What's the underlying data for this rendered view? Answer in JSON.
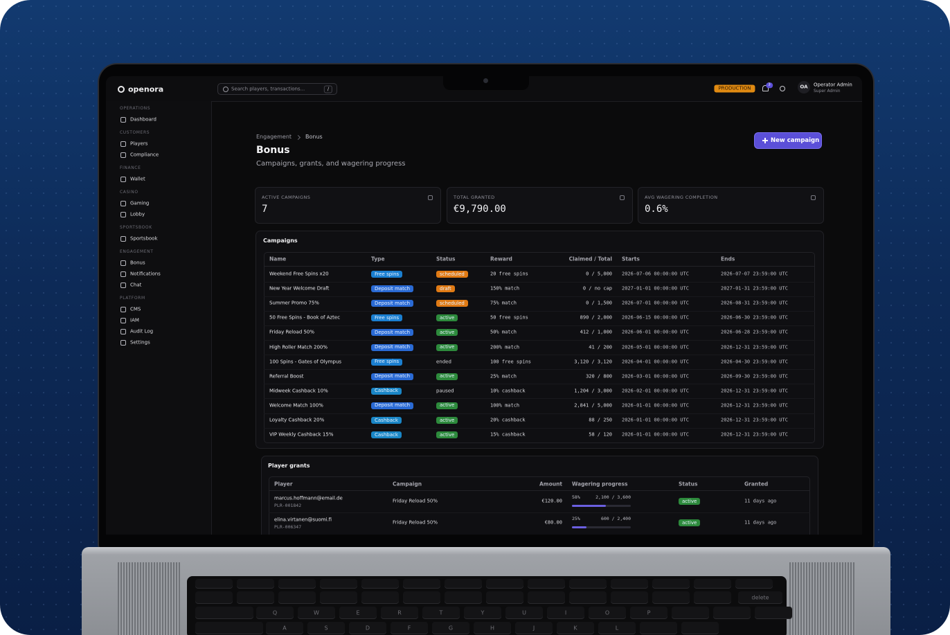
{
  "app": {
    "brand": "openora",
    "search_placeholder": "Search players, transactions...",
    "search_shortcut": "/",
    "environment": "PRODUCTION",
    "notification_count": "3",
    "user": {
      "initials": "OA",
      "name": "Operator Admin",
      "role": "Super Admin"
    }
  },
  "sidebar": [
    {
      "title": "OPERATIONS",
      "items": [
        "Dashboard"
      ]
    },
    {
      "title": "CUSTOMERS",
      "items": [
        "Players",
        "Compliance"
      ]
    },
    {
      "title": "FINANCE",
      "items": [
        "Wallet"
      ]
    },
    {
      "title": "CASINO",
      "items": [
        "Gaming",
        "Lobby"
      ]
    },
    {
      "title": "SPORTSBOOK",
      "items": [
        "Sportsbook"
      ]
    },
    {
      "title": "ENGAGEMENT",
      "items": [
        "Bonus",
        "Notifications",
        "Chat"
      ]
    },
    {
      "title": "PLATFORM",
      "items": [
        "CMS",
        "IAM",
        "Audit Log",
        "Settings"
      ]
    }
  ],
  "page": {
    "breadcrumb": [
      "Engagement",
      "Bonus"
    ],
    "title": "Bonus",
    "subtitle": "Campaigns, grants, and wagering progress",
    "action": "New campaign"
  },
  "stats": [
    {
      "label": "ACTIVE CAMPAIGNS",
      "value": "7"
    },
    {
      "label": "TOTAL GRANTED",
      "value": "€9,790.00"
    },
    {
      "label": "AVG WAGERING COMPLETION",
      "value": "0.6%"
    }
  ],
  "campaigns": {
    "title": "Campaigns",
    "columns": [
      "Name",
      "Type",
      "Status",
      "Reward",
      "Claimed / Total",
      "Starts",
      "Ends"
    ],
    "rows": [
      {
        "name": "Weekend Free Spins x20",
        "type": {
          "label": "Free spins",
          "color": "#1b7fd0"
        },
        "status": {
          "label": "scheduled",
          "color": "#e07a14"
        },
        "reward": "20 free spins",
        "claimed": "0 / 5,000",
        "starts": "2026-07-06 00:00:00 UTC",
        "ends": "2026-07-07 23:59:00 UTC"
      },
      {
        "name": "New Year Welcome Draft",
        "type": {
          "label": "Deposit match",
          "color": "#2a6ad4"
        },
        "status": {
          "label": "draft",
          "color": "#e07a14"
        },
        "reward": "150% match",
        "claimed": "0 / no cap",
        "starts": "2027-01-01 00:00:00 UTC",
        "ends": "2027-01-31 23:59:00 UTC"
      },
      {
        "name": "Summer Promo 75%",
        "type": {
          "label": "Deposit match",
          "color": "#2a6ad4"
        },
        "status": {
          "label": "scheduled",
          "color": "#e07a14"
        },
        "reward": "75% match",
        "claimed": "0 / 1,500",
        "starts": "2026-07-01 00:00:00 UTC",
        "ends": "2026-08-31 23:59:00 UTC"
      },
      {
        "name": "50 Free Spins - Book of Aztec",
        "type": {
          "label": "Free spins",
          "color": "#1b7fd0"
        },
        "status": {
          "label": "active",
          "color": "#2d8a3c"
        },
        "reward": "50 free spins",
        "claimed": "890 / 2,000",
        "starts": "2026-06-15 00:00:00 UTC",
        "ends": "2026-06-30 23:59:00 UTC"
      },
      {
        "name": "Friday Reload 50%",
        "type": {
          "label": "Deposit match",
          "color": "#2a6ad4"
        },
        "status": {
          "label": "active",
          "color": "#2d8a3c"
        },
        "reward": "50% match",
        "claimed": "412 / 1,000",
        "starts": "2026-06-01 00:00:00 UTC",
        "ends": "2026-06-28 23:59:00 UTC"
      },
      {
        "name": "High Roller Match 200%",
        "type": {
          "label": "Deposit match",
          "color": "#2a6ad4"
        },
        "status": {
          "label": "active",
          "color": "#2d8a3c"
        },
        "reward": "200% match",
        "claimed": "41 / 200",
        "starts": "2026-05-01 00:00:00 UTC",
        "ends": "2026-12-31 23:59:00 UTC"
      },
      {
        "name": "100 Spins - Gates of Olympus",
        "type": {
          "label": "Free spins",
          "color": "#1b7fd0"
        },
        "status": {
          "label": "ended"
        },
        "reward": "100 free spins",
        "claimed": "3,120 / 3,120",
        "starts": "2026-04-01 00:00:00 UTC",
        "ends": "2026-04-30 23:59:00 UTC"
      },
      {
        "name": "Referral Boost",
        "type": {
          "label": "Deposit match",
          "color": "#2a6ad4"
        },
        "status": {
          "label": "active",
          "color": "#2d8a3c"
        },
        "reward": "25% match",
        "claimed": "320 / 800",
        "starts": "2026-03-01 00:00:00 UTC",
        "ends": "2026-09-30 23:59:00 UTC"
      },
      {
        "name": "Midweek Cashback 10%",
        "type": {
          "label": "Cashback",
          "color": "#1a86c6"
        },
        "status": {
          "label": "paused"
        },
        "reward": "10% cashback",
        "claimed": "1,204 / 3,000",
        "starts": "2026-02-01 00:00:00 UTC",
        "ends": "2026-12-31 23:59:00 UTC"
      },
      {
        "name": "Welcome Match 100%",
        "type": {
          "label": "Deposit match",
          "color": "#2a6ad4"
        },
        "status": {
          "label": "active",
          "color": "#2d8a3c"
        },
        "reward": "100% match",
        "claimed": "2,841 / 5,000",
        "starts": "2026-01-01 00:00:00 UTC",
        "ends": "2026-12-31 23:59:00 UTC"
      },
      {
        "name": "Loyalty Cashback 20%",
        "type": {
          "label": "Cashback",
          "color": "#1a86c6"
        },
        "status": {
          "label": "active",
          "color": "#2d8a3c"
        },
        "reward": "20% cashback",
        "claimed": "88 / 250",
        "starts": "2026-01-01 00:00:00 UTC",
        "ends": "2026-12-31 23:59:00 UTC"
      },
      {
        "name": "VIP Weekly Cashback 15%",
        "type": {
          "label": "Cashback",
          "color": "#1a86c6"
        },
        "status": {
          "label": "active",
          "color": "#2d8a3c"
        },
        "reward": "15% cashback",
        "claimed": "58 / 120",
        "starts": "2026-01-01 00:00:00 UTC",
        "ends": "2026-12-31 23:59:00 UTC"
      }
    ]
  },
  "grants": {
    "title": "Player grants",
    "columns": [
      "Player",
      "Campaign",
      "Amount",
      "Wagering progress",
      "Status",
      "Granted"
    ],
    "rows": [
      {
        "player": "marcus.hoffmann@email.de",
        "player_id": "PLR-001842",
        "campaign": "Friday Reload 50%",
        "amount": "€120.00",
        "progress": {
          "value": 58,
          "label": "58%"
        },
        "wagered": "2,100 / 3,600",
        "status": {
          "label": "active",
          "color": "#2d8a3c"
        },
        "granted": "11 days ago"
      },
      {
        "player": "elina.virtanen@suomi.fi",
        "player_id": "PLR-006347",
        "campaign": "Friday Reload 50%",
        "amount": "€80.00",
        "progress": {
          "value": 25,
          "label": "25%"
        },
        "wagered": "600 / 2,400",
        "status": {
          "label": "active",
          "color": "#2d8a3c"
        },
        "granted": "11 days ago"
      }
    ]
  },
  "keyboard": {
    "letter_row": [
      "Q",
      "W",
      "E",
      "R",
      "T",
      "Y",
      "U",
      "I",
      "O",
      "P"
    ],
    "home_row": [
      "A",
      "S",
      "D",
      "F",
      "G",
      "H",
      "J",
      "K",
      "L"
    ],
    "delete": "delete"
  }
}
